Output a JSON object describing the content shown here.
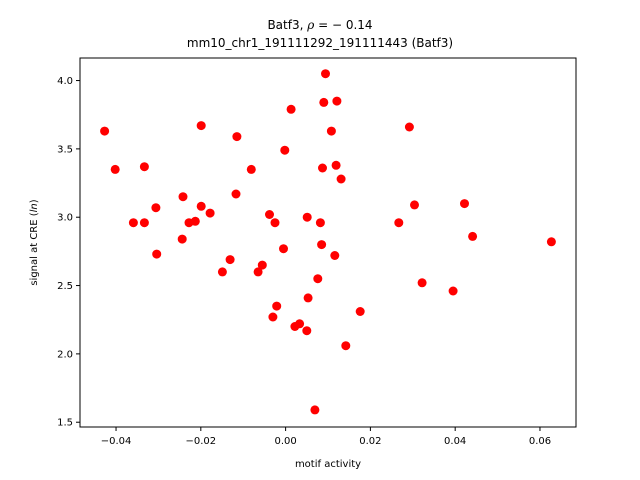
{
  "chart_data": {
    "type": "scatter",
    "title_line1_prefix": "Batf3, ",
    "title_line1_rho_symbol": "ρ",
    "title_line1_rho_value": " = − 0.14",
    "title_line2": "mm10_chr1_191111292_191111443 (Batf3)",
    "xlabel": "motif activity",
    "ylabel_prefix": "signal at CRE (",
    "ylabel_ln": "ln",
    "ylabel_suffix": ")",
    "xlim": [
      -0.0485,
      0.0685
    ],
    "ylim": [
      1.465,
      4.165
    ],
    "x_ticks": [
      -0.04,
      -0.02,
      0.0,
      0.02,
      0.04,
      0.06
    ],
    "x_tick_labels": [
      "−0.04",
      "−0.02",
      "0.00",
      "0.02",
      "0.04",
      "0.06"
    ],
    "y_ticks": [
      1.5,
      2.0,
      2.5,
      3.0,
      3.5,
      4.0
    ],
    "y_tick_labels": [
      "1.5",
      "2.0",
      "2.5",
      "3.0",
      "3.5",
      "4.0"
    ],
    "grid": false,
    "point_color": "#ff0000",
    "points": [
      {
        "x": -0.0427,
        "y": 3.63
      },
      {
        "x": -0.0402,
        "y": 3.35
      },
      {
        "x": -0.0359,
        "y": 2.96
      },
      {
        "x": -0.0333,
        "y": 3.37
      },
      {
        "x": -0.0333,
        "y": 2.96
      },
      {
        "x": -0.0306,
        "y": 3.07
      },
      {
        "x": -0.0304,
        "y": 2.73
      },
      {
        "x": -0.0244,
        "y": 2.84
      },
      {
        "x": -0.0242,
        "y": 3.15
      },
      {
        "x": -0.0228,
        "y": 2.96
      },
      {
        "x": -0.0213,
        "y": 2.97
      },
      {
        "x": -0.0199,
        "y": 3.67
      },
      {
        "x": -0.0199,
        "y": 3.08
      },
      {
        "x": -0.0178,
        "y": 3.03
      },
      {
        "x": -0.0149,
        "y": 2.6
      },
      {
        "x": -0.0131,
        "y": 2.69
      },
      {
        "x": -0.0117,
        "y": 3.17
      },
      {
        "x": -0.0115,
        "y": 3.59
      },
      {
        "x": -0.0081,
        "y": 3.35
      },
      {
        "x": -0.0065,
        "y": 2.6
      },
      {
        "x": -0.0055,
        "y": 2.65
      },
      {
        "x": -0.0038,
        "y": 3.02
      },
      {
        "x": -0.003,
        "y": 2.27
      },
      {
        "x": -0.0025,
        "y": 2.96
      },
      {
        "x": -0.0021,
        "y": 2.35
      },
      {
        "x": -0.0005,
        "y": 2.77
      },
      {
        "x": -0.0002,
        "y": 3.49
      },
      {
        "x": 0.0013,
        "y": 3.79
      },
      {
        "x": 0.0022,
        "y": 2.2
      },
      {
        "x": 0.0033,
        "y": 2.22
      },
      {
        "x": 0.005,
        "y": 2.17
      },
      {
        "x": 0.0051,
        "y": 3.0
      },
      {
        "x": 0.0053,
        "y": 2.41
      },
      {
        "x": 0.0069,
        "y": 1.59
      },
      {
        "x": 0.0076,
        "y": 2.55
      },
      {
        "x": 0.0082,
        "y": 2.96
      },
      {
        "x": 0.0085,
        "y": 2.8
      },
      {
        "x": 0.0087,
        "y": 3.36
      },
      {
        "x": 0.009,
        "y": 3.84
      },
      {
        "x": 0.0094,
        "y": 4.05
      },
      {
        "x": 0.0108,
        "y": 3.63
      },
      {
        "x": 0.0116,
        "y": 2.72
      },
      {
        "x": 0.0119,
        "y": 3.38
      },
      {
        "x": 0.0121,
        "y": 3.85
      },
      {
        "x": 0.0131,
        "y": 3.28
      },
      {
        "x": 0.0142,
        "y": 2.06
      },
      {
        "x": 0.0176,
        "y": 2.31
      },
      {
        "x": 0.0267,
        "y": 2.96
      },
      {
        "x": 0.0292,
        "y": 3.66
      },
      {
        "x": 0.0304,
        "y": 3.09
      },
      {
        "x": 0.0322,
        "y": 2.52
      },
      {
        "x": 0.0395,
        "y": 2.46
      },
      {
        "x": 0.0422,
        "y": 3.1
      },
      {
        "x": 0.0441,
        "y": 2.86
      },
      {
        "x": 0.0627,
        "y": 2.82
      }
    ]
  }
}
